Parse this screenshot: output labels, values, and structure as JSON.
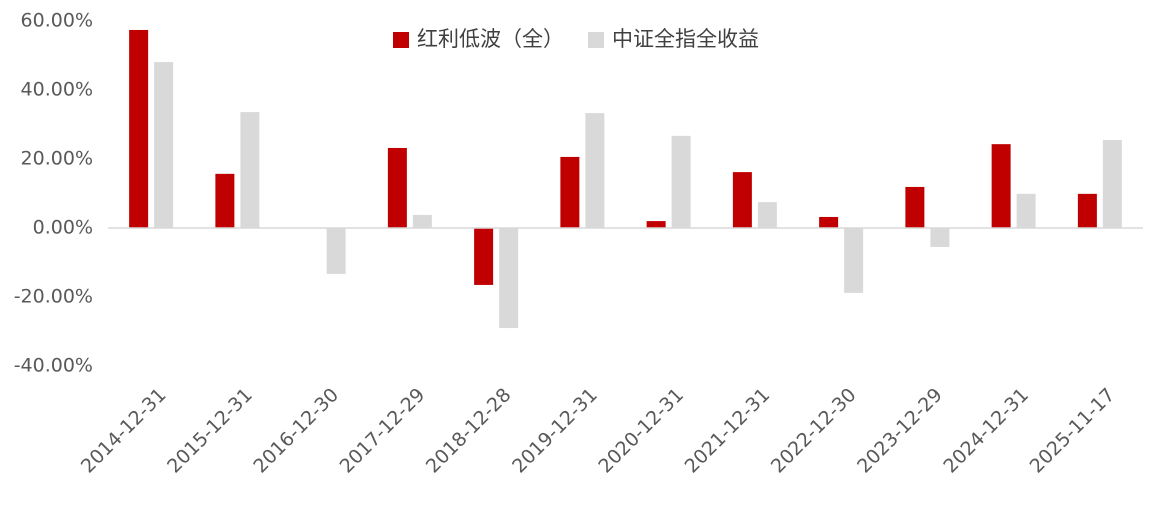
{
  "chart_data": {
    "type": "bar",
    "categories": [
      "2014-12-31",
      "2015-12-31",
      "2016-12-30",
      "2017-12-29",
      "2018-12-28",
      "2019-12-31",
      "2020-12-31",
      "2021-12-31",
      "2022-12-30",
      "2023-12-29",
      "2024-12-31",
      "2025-11-17"
    ],
    "series": [
      {
        "name": "红利低波（全）",
        "color": "#c00000",
        "values": [
          57.4,
          15.7,
          0,
          23.2,
          -16.5,
          20.6,
          2.0,
          16.2,
          3.2,
          11.9,
          24.3,
          9.9
        ]
      },
      {
        "name": "中证全指全收益",
        "color": "#d9d9d9",
        "values": [
          48.1,
          33.6,
          -13.3,
          3.8,
          -29.0,
          33.3,
          26.7,
          7.5,
          -18.8,
          -5.5,
          9.9,
          25.5
        ]
      }
    ],
    "ylim": [
      -40,
      60
    ],
    "yticks": [
      {
        "value": -40,
        "label": "-40.00%"
      },
      {
        "value": -20,
        "label": "-20.00%"
      },
      {
        "value": 0,
        "label": "0.00%"
      },
      {
        "value": 20,
        "label": "20.00%"
      },
      {
        "value": 40,
        "label": "40.00%"
      },
      {
        "value": 60,
        "label": "60.00%"
      }
    ],
    "grid": false,
    "legend": "top"
  }
}
